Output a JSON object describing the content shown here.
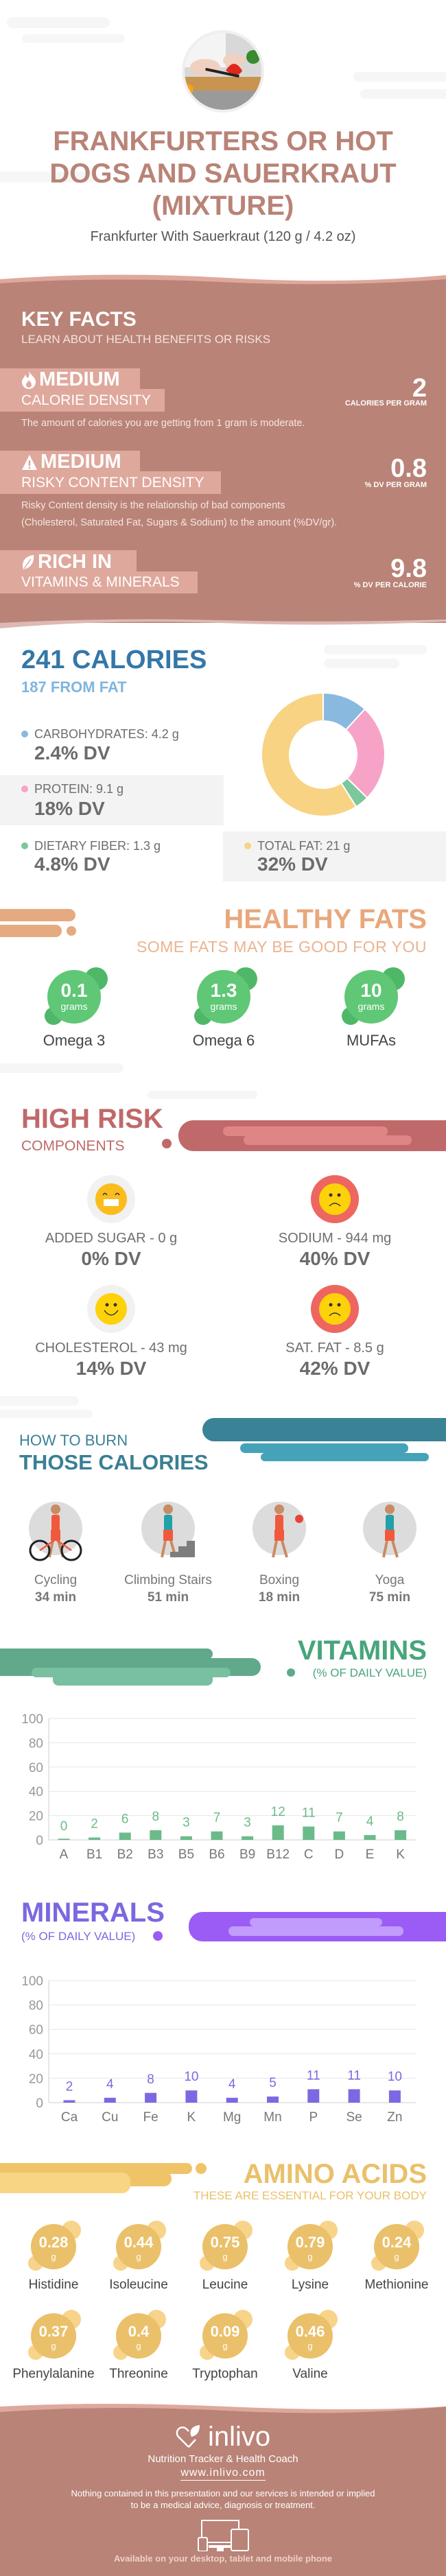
{
  "header": {
    "title_lines": [
      "FRANKFURTERS OR HOT",
      "DOGS AND SAUERKRAUT",
      "(MIXTURE)"
    ],
    "subtitle": "Frankfurter With Sauerkraut (120 g / 4.2 oz)"
  },
  "key_facts": {
    "title": "KEY FACTS",
    "subtitle": "LEARN ABOUT HEALTH BENEFITS OR RISKS",
    "items": [
      {
        "icon": "fire-icon",
        "level": "MEDIUM",
        "label": "CALORIE DENSITY",
        "value": "2",
        "unit": "CALORIES PER GRAM",
        "description": [
          "The amount of calories you are getting from 1 gram is moderate."
        ]
      },
      {
        "icon": "warning-icon",
        "level": "MEDIUM",
        "label": "RISKY CONTENT DENSITY",
        "value": "0.8",
        "unit": "% DV PER GRAM",
        "description": [
          "Risky Content density is the relationship of bad components",
          "(Cholesterol, Saturated Fat, Sugars & Sodium) to the amount (%DV/gr)."
        ]
      },
      {
        "icon": "leaf-icon",
        "level": "RICH  IN",
        "label": "VITAMINS & MINERALS",
        "value": "9.8",
        "unit": "% DV PER CALORIE",
        "description": []
      }
    ]
  },
  "calories": {
    "title": "241 CALORIES",
    "from_fat": "187 FROM FAT",
    "macros": [
      {
        "label": "CARBOHYDRATES: 4.2 g",
        "dv": "2.4% DV",
        "grams": 4.2,
        "color": "#8ab9df"
      },
      {
        "label": "PROTEIN: 9.1 g",
        "dv": "18% DV",
        "grams": 9.1,
        "color": "#f7a3c8"
      },
      {
        "label": "DIETARY FIBER: 1.3 g",
        "dv": "4.8% DV",
        "grams": 1.3,
        "color": "#7cc79c"
      },
      {
        "label": "TOTAL FAT: 21 g",
        "dv": "32% DV",
        "grams": 21,
        "color": "#f8d384"
      }
    ]
  },
  "healthy_fats": {
    "title": "HEALTHY FATS",
    "subtitle": "SOME FATS MAY BE GOOD FOR YOU",
    "items": [
      {
        "value": "0.1",
        "unit": "grams",
        "label": "Omega 3"
      },
      {
        "value": "1.3",
        "unit": "grams",
        "label": "Omega 6"
      },
      {
        "value": "10",
        "unit": "grams",
        "label": "MUFAs"
      }
    ]
  },
  "high_risk": {
    "title": "HIGH RISK",
    "subtitle": "COMPONENTS",
    "items": [
      {
        "label": "ADDED SUGAR - 0 g",
        "dv": "0% DV",
        "mood": "grin"
      },
      {
        "label": "SODIUM - 944 mg",
        "dv": "40% DV",
        "mood": "sad"
      },
      {
        "label": "CHOLESTEROL - 43 mg",
        "dv": "14% DV",
        "mood": "smile"
      },
      {
        "label": "SAT. FAT - 8.5 g",
        "dv": "42% DV",
        "mood": "sad"
      }
    ]
  },
  "burn": {
    "title_top": "HOW TO BURN",
    "title_bottom": "THOSE CALORIES",
    "items": [
      {
        "label": "Cycling",
        "time": "34 min"
      },
      {
        "label": "Climbing Stairs",
        "time": "51 min"
      },
      {
        "label": "Boxing",
        "time": "18 min"
      },
      {
        "label": "Yoga",
        "time": "75 min"
      }
    ]
  },
  "chart_data": [
    {
      "type": "bar",
      "title": "VITAMINS",
      "subtitle": "(% OF DAILY VALUE)",
      "categories": [
        "A",
        "B1",
        "B2",
        "B3",
        "B5",
        "B6",
        "B9",
        "B12",
        "C",
        "D",
        "E",
        "K"
      ],
      "values": [
        0,
        2,
        6,
        8,
        3,
        7,
        3,
        12,
        11,
        7,
        4,
        8
      ],
      "ylim": [
        0,
        100
      ],
      "yticks": [
        0,
        20,
        40,
        60,
        80,
        100
      ],
      "grid": true,
      "color": "#6bbb8a"
    },
    {
      "type": "bar",
      "title": "MINERALS",
      "subtitle": "(% OF DAILY VALUE)",
      "categories": [
        "Ca",
        "Cu",
        "Fe",
        "K",
        "Mg",
        "Mn",
        "P",
        "Se",
        "Zn"
      ],
      "values": [
        2,
        4,
        8,
        10,
        4,
        5,
        11,
        11,
        10
      ],
      "ylim": [
        0,
        100
      ],
      "yticks": [
        0,
        20,
        40,
        60,
        80,
        100
      ],
      "grid": true,
      "color": "#7d68e3"
    }
  ],
  "amino": {
    "title": "AMINO ACIDS",
    "subtitle": "THESE ARE ESSENTIAL FOR YOUR BODY",
    "items": [
      {
        "value": "0.28",
        "unit": "g",
        "label": "Histidine"
      },
      {
        "value": "0.44",
        "unit": "g",
        "label": "Isoleucine"
      },
      {
        "value": "0.75",
        "unit": "g",
        "label": "Leucine"
      },
      {
        "value": "0.79",
        "unit": "g",
        "label": "Lysine"
      },
      {
        "value": "0.24",
        "unit": "g",
        "label": "Methionine"
      },
      {
        "value": "0.37",
        "unit": "g",
        "label": "Phenylalanine"
      },
      {
        "value": "0.4",
        "unit": "g",
        "label": "Threonine"
      },
      {
        "value": "0.09",
        "unit": "g",
        "label": "Tryptophan"
      },
      {
        "value": "0.46",
        "unit": "g",
        "label": "Valine"
      }
    ]
  },
  "footer": {
    "brand": "inlivo",
    "tagline": "Nutrition Tracker & Health Coach",
    "url": "www.inlivo.com",
    "disclaimer": [
      "Nothing contained in this presentation and our services is intended or implied",
      "to be a medical advice, diagnosis or treatment."
    ],
    "available": "Available on your desktop, tablet and mobile phone"
  },
  "colors": {
    "brand": "#b98377",
    "brand_light": "#dfa89c",
    "calories": "#3477a8",
    "healthy_fats": "#e8a87c",
    "fat_bubble": "#5fc776",
    "high_risk": "#c0696a",
    "burn": "#3a8296",
    "vitamins": "#47a57b",
    "minerals": "#7b68e0",
    "amino": "#eac06a"
  }
}
